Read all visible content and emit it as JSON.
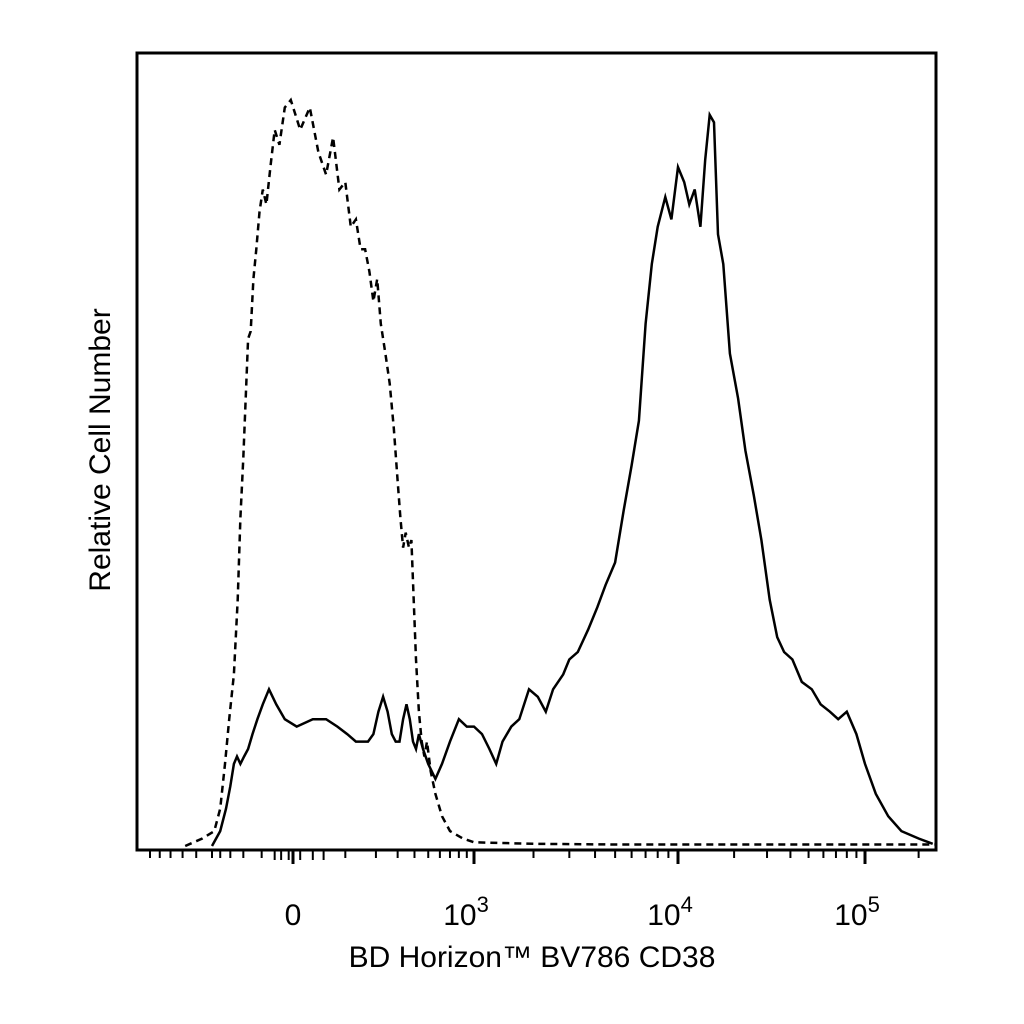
{
  "chart_data": {
    "type": "line",
    "title": "",
    "xlabel": "BD Horizon™ BV786 CD38",
    "ylabel": "Relative Cell Number",
    "x_scale": "biexponential",
    "x_tick_labels": [
      {
        "value": 0,
        "base": "0",
        "exp": ""
      },
      {
        "value": 1000,
        "base": "10",
        "exp": "3"
      },
      {
        "value": 10000,
        "base": "10",
        "exp": "4"
      },
      {
        "value": 100000,
        "base": "10",
        "exp": "5"
      }
    ],
    "y_tick_labels": [],
    "grid": false,
    "legend": "none",
    "series": [
      {
        "style": "dashed",
        "points": [
          [
            -680,
            0.0
          ],
          [
            -560,
            0.01
          ],
          [
            -470,
            0.02
          ],
          [
            -400,
            0.05
          ],
          [
            -350,
            0.11
          ],
          [
            -310,
            0.17
          ],
          [
            -270,
            0.23
          ],
          [
            -240,
            0.33
          ],
          [
            -220,
            0.44
          ],
          [
            -200,
            0.52
          ],
          [
            -185,
            0.6
          ],
          [
            -170,
            0.68
          ],
          [
            -155,
            0.69
          ],
          [
            -140,
            0.76
          ],
          [
            -125,
            0.8
          ],
          [
            -110,
            0.85
          ],
          [
            -95,
            0.88
          ],
          [
            -80,
            0.86
          ],
          [
            -65,
            0.91
          ],
          [
            -50,
            0.96
          ],
          [
            -35,
            0.94
          ],
          [
            -20,
            0.99
          ],
          [
            -5,
            1.0
          ],
          [
            10,
            0.96
          ],
          [
            25,
            0.99
          ],
          [
            40,
            0.93
          ],
          [
            55,
            0.9
          ],
          [
            70,
            0.95
          ],
          [
            85,
            0.88
          ],
          [
            100,
            0.89
          ],
          [
            115,
            0.83
          ],
          [
            130,
            0.84
          ],
          [
            145,
            0.8
          ],
          [
            160,
            0.8
          ],
          [
            175,
            0.77
          ],
          [
            190,
            0.73
          ],
          [
            205,
            0.76
          ],
          [
            220,
            0.7
          ],
          [
            240,
            0.66
          ],
          [
            260,
            0.62
          ],
          [
            280,
            0.56
          ],
          [
            300,
            0.49
          ],
          [
            315,
            0.44
          ],
          [
            330,
            0.4
          ],
          [
            345,
            0.42
          ],
          [
            365,
            0.4
          ],
          [
            380,
            0.41
          ],
          [
            395,
            0.33
          ],
          [
            410,
            0.25
          ],
          [
            430,
            0.18
          ],
          [
            450,
            0.14
          ],
          [
            470,
            0.12
          ],
          [
            490,
            0.14
          ],
          [
            520,
            0.1
          ],
          [
            560,
            0.07
          ],
          [
            620,
            0.04
          ],
          [
            700,
            0.02
          ],
          [
            850,
            0.01
          ],
          [
            1000,
            0.005
          ],
          [
            2000,
            0.003
          ],
          [
            5000,
            0.002
          ],
          [
            20000,
            0.002
          ],
          [
            100000,
            0.002
          ],
          [
            250000,
            0.002
          ]
        ]
      },
      {
        "style": "solid",
        "points": [
          [
            -500,
            0.0
          ],
          [
            -400,
            0.02
          ],
          [
            -340,
            0.05
          ],
          [
            -300,
            0.08
          ],
          [
            -270,
            0.11
          ],
          [
            -245,
            0.12
          ],
          [
            -220,
            0.11
          ],
          [
            -195,
            0.12
          ],
          [
            -170,
            0.13
          ],
          [
            -145,
            0.15
          ],
          [
            -120,
            0.17
          ],
          [
            -95,
            0.19
          ],
          [
            -70,
            0.21
          ],
          [
            -45,
            0.19
          ],
          [
            -20,
            0.17
          ],
          [
            5,
            0.16
          ],
          [
            30,
            0.17
          ],
          [
            55,
            0.17
          ],
          [
            80,
            0.16
          ],
          [
            105,
            0.15
          ],
          [
            130,
            0.14
          ],
          [
            150,
            0.14
          ],
          [
            170,
            0.14
          ],
          [
            190,
            0.15
          ],
          [
            210,
            0.18
          ],
          [
            230,
            0.2
          ],
          [
            250,
            0.18
          ],
          [
            270,
            0.15
          ],
          [
            290,
            0.14
          ],
          [
            310,
            0.14
          ],
          [
            330,
            0.17
          ],
          [
            350,
            0.19
          ],
          [
            370,
            0.17
          ],
          [
            390,
            0.14
          ],
          [
            410,
            0.13
          ],
          [
            430,
            0.15
          ],
          [
            460,
            0.13
          ],
          [
            500,
            0.11
          ],
          [
            560,
            0.09
          ],
          [
            620,
            0.11
          ],
          [
            700,
            0.14
          ],
          [
            800,
            0.17
          ],
          [
            900,
            0.16
          ],
          [
            1000,
            0.16
          ],
          [
            1100,
            0.15
          ],
          [
            1200,
            0.13
          ],
          [
            1300,
            0.11
          ],
          [
            1400,
            0.14
          ],
          [
            1550,
            0.16
          ],
          [
            1700,
            0.17
          ],
          [
            1900,
            0.21
          ],
          [
            2100,
            0.2
          ],
          [
            2300,
            0.18
          ],
          [
            2500,
            0.21
          ],
          [
            2800,
            0.23
          ],
          [
            3000,
            0.25
          ],
          [
            3300,
            0.26
          ],
          [
            3700,
            0.29
          ],
          [
            4100,
            0.32
          ],
          [
            4500,
            0.35
          ],
          [
            5000,
            0.38
          ],
          [
            5500,
            0.45
          ],
          [
            6000,
            0.51
          ],
          [
            6500,
            0.57
          ],
          [
            7000,
            0.7
          ],
          [
            7500,
            0.78
          ],
          [
            8000,
            0.83
          ],
          [
            8700,
            0.87
          ],
          [
            9300,
            0.84
          ],
          [
            10000,
            0.91
          ],
          [
            10800,
            0.89
          ],
          [
            11500,
            0.86
          ],
          [
            12300,
            0.88
          ],
          [
            13200,
            0.83
          ],
          [
            14000,
            0.92
          ],
          [
            14800,
            0.98
          ],
          [
            15600,
            0.97
          ],
          [
            16400,
            0.82
          ],
          [
            17500,
            0.78
          ],
          [
            19000,
            0.66
          ],
          [
            21000,
            0.6
          ],
          [
            23000,
            0.53
          ],
          [
            25500,
            0.47
          ],
          [
            28000,
            0.41
          ],
          [
            31000,
            0.33
          ],
          [
            34000,
            0.28
          ],
          [
            37000,
            0.26
          ],
          [
            41000,
            0.25
          ],
          [
            46000,
            0.22
          ],
          [
            52000,
            0.21
          ],
          [
            58000,
            0.19
          ],
          [
            65000,
            0.18
          ],
          [
            72000,
            0.17
          ],
          [
            80000,
            0.18
          ],
          [
            90000,
            0.15
          ],
          [
            100000,
            0.11
          ],
          [
            115000,
            0.07
          ],
          [
            135000,
            0.04
          ],
          [
            160000,
            0.02
          ],
          [
            200000,
            0.01
          ],
          [
            240000,
            0.003
          ]
        ]
      }
    ]
  }
}
